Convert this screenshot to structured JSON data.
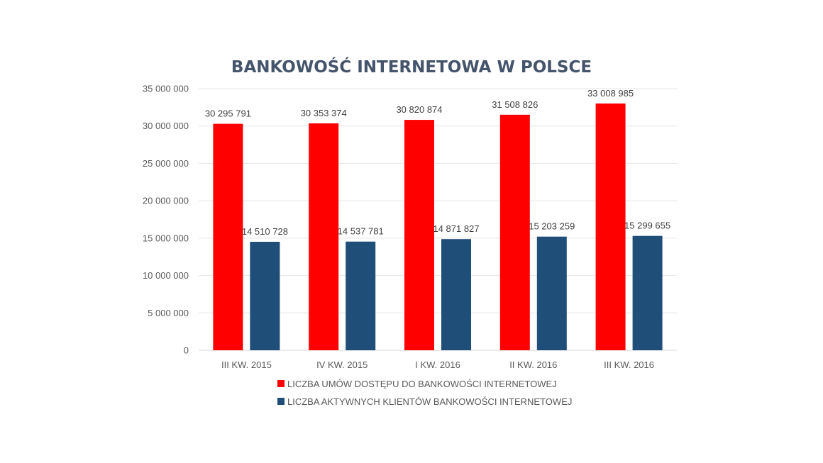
{
  "chart_data": {
    "type": "bar",
    "title": "BANKOWOŚĆ INTERNETOWA W POLSCE",
    "categories": [
      "III KW. 2015",
      "IV KW. 2015",
      "I KW. 2016",
      "II KW. 2016",
      "III KW. 2016"
    ],
    "series": [
      {
        "name": "LICZBA UMÓW DOSTĘPU DO BANKOWOŚCI INTERNETOWEJ",
        "color": "#ff0000",
        "values": [
          30295791,
          30353374,
          30820874,
          31508826,
          33008985
        ],
        "labels": [
          "30 295 791",
          "30 353 374",
          "30 820 874",
          "31 508 826",
          "33 008 985"
        ]
      },
      {
        "name": "LICZBA AKTYWNYCH KLIENTÓW BANKOWOŚCI INTERNETOWEJ",
        "color": "#1f4e79",
        "values": [
          14510728,
          14537781,
          14871827,
          15203259,
          15299655
        ],
        "labels": [
          "14 510 728",
          "14 537 781",
          "14 871 827",
          "15 203 259",
          "15 299 655"
        ]
      }
    ],
    "ylim": [
      0,
      35000000
    ],
    "yticks": [
      {
        "value": 0,
        "label": "0"
      },
      {
        "value": 5000000,
        "label": "5 000 000"
      },
      {
        "value": 10000000,
        "label": "10 000 000"
      },
      {
        "value": 15000000,
        "label": "15 000 000"
      },
      {
        "value": 20000000,
        "label": "20 000 000"
      },
      {
        "value": 25000000,
        "label": "25 000 000"
      },
      {
        "value": 30000000,
        "label": "30 000 000"
      },
      {
        "value": 35000000,
        "label": "35 000 000"
      }
    ],
    "grid": true,
    "legend_position": "bottom"
  }
}
